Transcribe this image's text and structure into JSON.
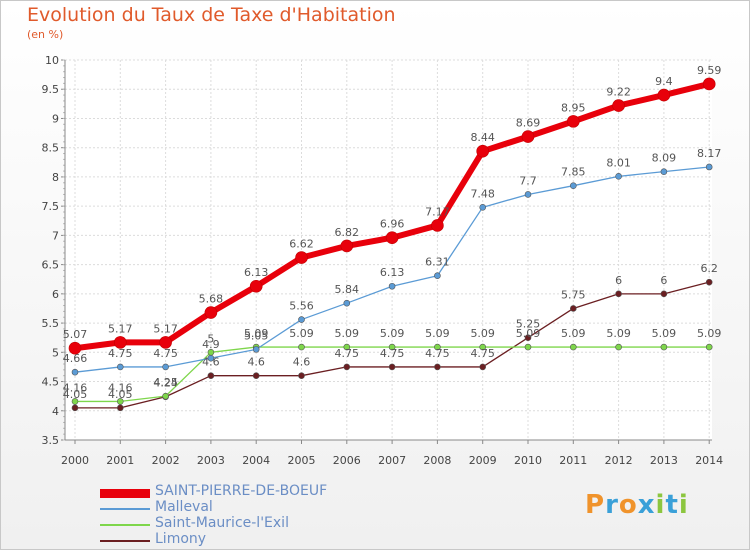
{
  "chart_data": {
    "type": "line",
    "title": "Evolution du Taux de Taxe d'Habitation",
    "subtitle": "(en %)",
    "x": [
      "2000",
      "2001",
      "2002",
      "2003",
      "2004",
      "2005",
      "2006",
      "2007",
      "2008",
      "2009",
      "2010",
      "2011",
      "2012",
      "2013",
      "2014"
    ],
    "y_ticks": [
      "3.5",
      "4",
      "4.5",
      "5",
      "5.5",
      "6",
      "6.5",
      "7",
      "7.5",
      "8",
      "8.5",
      "9",
      "9.5",
      "10"
    ],
    "ylim": [
      3.5,
      10
    ],
    "grid": true,
    "legend_position": "bottom-left",
    "series": [
      {
        "name": "SAINT-PIERRE-DE-BOEUF",
        "color": "#e8000b",
        "values": [
          5.07,
          5.17,
          5.17,
          5.68,
          6.13,
          6.62,
          6.82,
          6.96,
          7.17,
          8.44,
          8.69,
          8.95,
          9.22,
          9.4,
          9.59
        ],
        "labels": [
          "5.07",
          "5.17",
          "5.17",
          "5.68",
          "6.13",
          "6.62",
          "6.82",
          "6.96",
          "7.17",
          "8.44",
          "8.69",
          "8.95",
          "9.22",
          "9.4",
          "9.59"
        ]
      },
      {
        "name": "Malleval",
        "color": "#5b9bd5",
        "values": [
          4.66,
          4.75,
          4.75,
          4.9,
          5.05,
          5.56,
          5.84,
          6.13,
          6.31,
          7.48,
          7.7,
          7.85,
          8.01,
          8.09,
          8.17
        ],
        "labels": [
          "4.66",
          "4.75",
          "4.75",
          "4.9",
          "5.05",
          "5.56",
          "5.84",
          "6.13",
          "6.31",
          "7.48",
          "7.7",
          "7.85",
          "8.01",
          "8.09",
          "8.17"
        ]
      },
      {
        "name": "Saint-Maurice-l'Exil",
        "color": "#7ed64b",
        "values": [
          4.16,
          4.16,
          4.25,
          5.0,
          5.09,
          5.09,
          5.09,
          5.09,
          5.09,
          5.09,
          5.09,
          5.09,
          5.09,
          5.09,
          5.09
        ],
        "labels": [
          "4.16",
          "4.16",
          "4.25",
          "5",
          "5.09",
          "5.09",
          "5.09",
          "5.09",
          "5.09",
          "5.09",
          "5.09",
          "5.09",
          "5.09",
          "5.09",
          "5.09"
        ]
      },
      {
        "name": "Limony",
        "color": "#6b1f22",
        "values": [
          4.05,
          4.05,
          4.24,
          4.6,
          4.6,
          4.6,
          4.75,
          4.75,
          4.75,
          4.75,
          5.25,
          5.75,
          6.0,
          6.0,
          6.2
        ],
        "labels": [
          "4.05",
          "4.05",
          "4.24",
          "4.6",
          "4.6",
          "4.6",
          "4.75",
          "4.75",
          "4.75",
          "4.75",
          "5.25",
          "5.75",
          "6",
          "6",
          "6.2"
        ]
      }
    ]
  },
  "logo": {
    "letters": [
      "P",
      "r",
      "o",
      "x",
      "i",
      "t",
      "i"
    ],
    "colors": [
      "#f0932b",
      "#3aa0d8",
      "#f0932b",
      "#3aa0d8",
      "#8cc63f",
      "#3aa0d8",
      "#8cc63f"
    ]
  }
}
